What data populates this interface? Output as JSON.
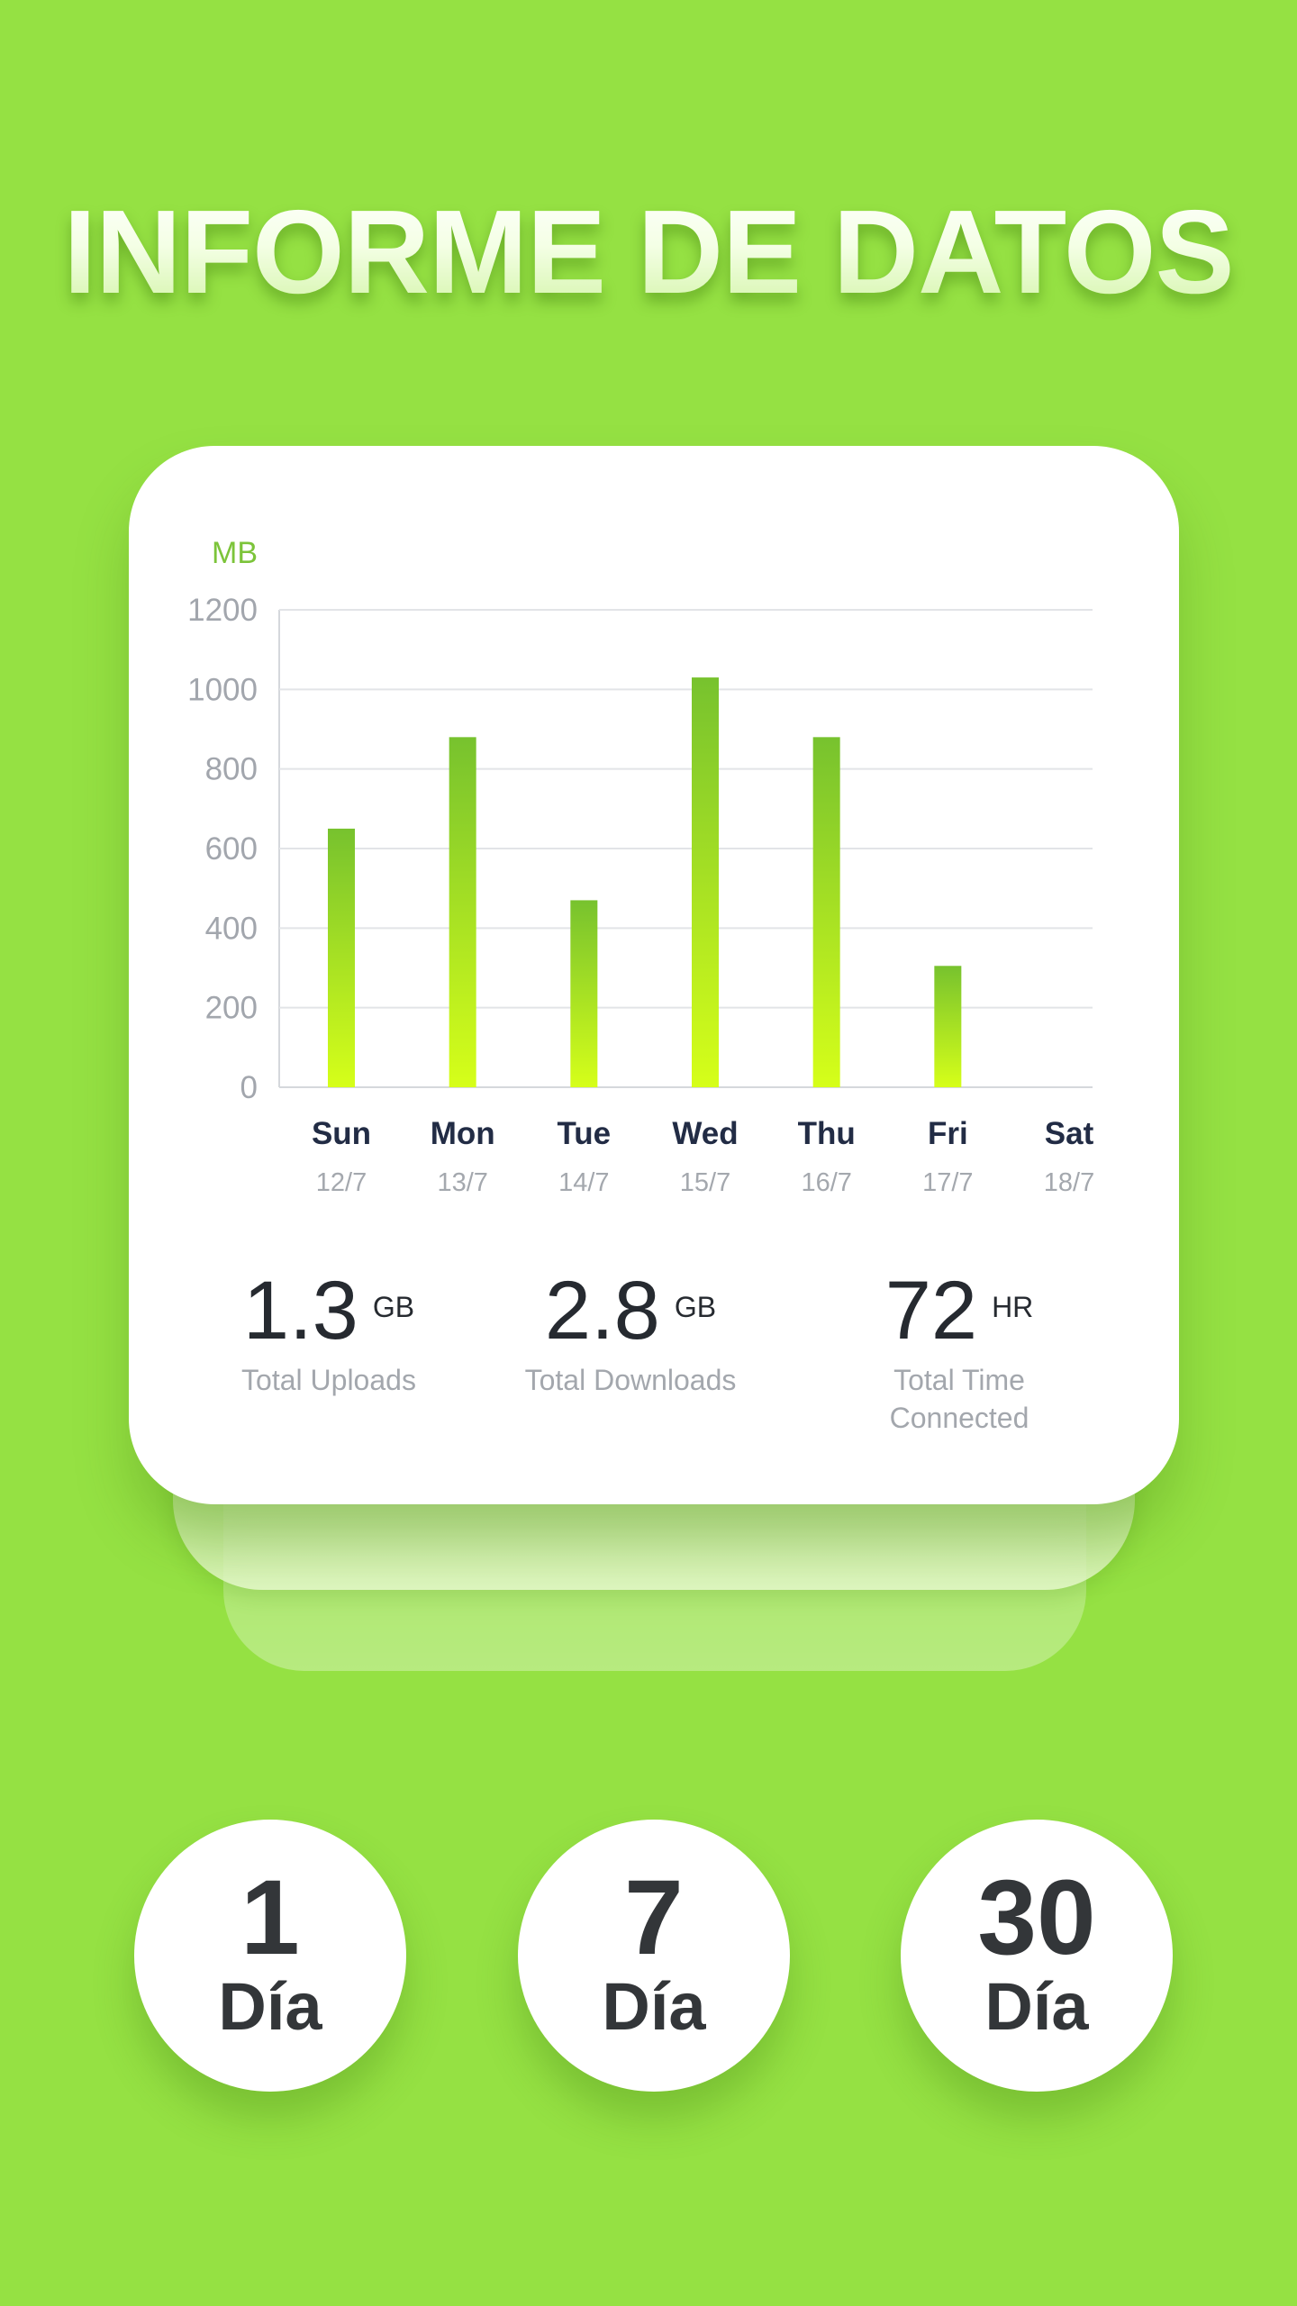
{
  "headline": "INFORME DE DATOS",
  "chart_data": {
    "type": "bar",
    "ylabel": "MB",
    "ylim": [
      0,
      1200
    ],
    "yticks": [
      0,
      200,
      400,
      600,
      800,
      1000,
      1200
    ],
    "categories": [
      "Sun",
      "Mon",
      "Tue",
      "Wed",
      "Thu",
      "Fri",
      "Sat"
    ],
    "dates": [
      "12/7",
      "13/7",
      "14/7",
      "15/7",
      "16/7",
      "17/7",
      "18/7"
    ],
    "values": [
      650,
      880,
      470,
      1030,
      880,
      305,
      0
    ],
    "bar_color_top": "#77c22e",
    "bar_color_bottom": "#d6ff19",
    "grid": true
  },
  "stats": [
    {
      "value": "1.3",
      "unit": "GB",
      "label": "Total Uploads"
    },
    {
      "value": "2.8",
      "unit": "GB",
      "label": "Total Downloads"
    },
    {
      "value": "72",
      "unit": "HR",
      "label": "Total Time Connected"
    }
  ],
  "periods": [
    {
      "number": "1",
      "label": "Día"
    },
    {
      "number": "7",
      "label": "Día"
    },
    {
      "number": "30",
      "label": "Día"
    }
  ],
  "colors": {
    "background": "#95e143",
    "accent": "#7cc43a"
  }
}
